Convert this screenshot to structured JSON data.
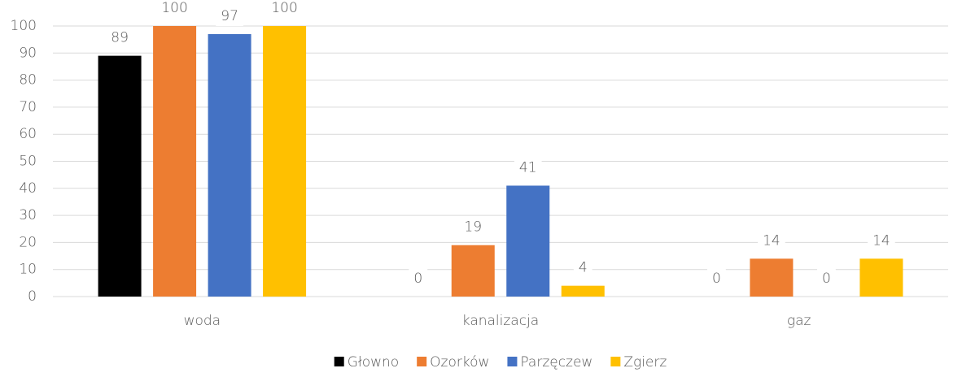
{
  "chart_data": {
    "type": "bar",
    "categories": [
      "woda",
      "kanalizacja",
      "gaz"
    ],
    "series": [
      {
        "name": "Głowno",
        "color": "#000000",
        "values": [
          89,
          0,
          0
        ]
      },
      {
        "name": "Ozorków",
        "color": "#ed7d31",
        "values": [
          100,
          19,
          14
        ]
      },
      {
        "name": "Parzęczew",
        "color": "#4472c4",
        "values": [
          97,
          41,
          0
        ]
      },
      {
        "name": "Zgierz",
        "color": "#ffc000",
        "values": [
          100,
          4,
          14
        ]
      }
    ],
    "ylim": [
      0,
      100
    ],
    "yticks": [
      0,
      10,
      20,
      30,
      40,
      50,
      60,
      70,
      80,
      90,
      100
    ],
    "grid": true,
    "legend": "bottom"
  }
}
